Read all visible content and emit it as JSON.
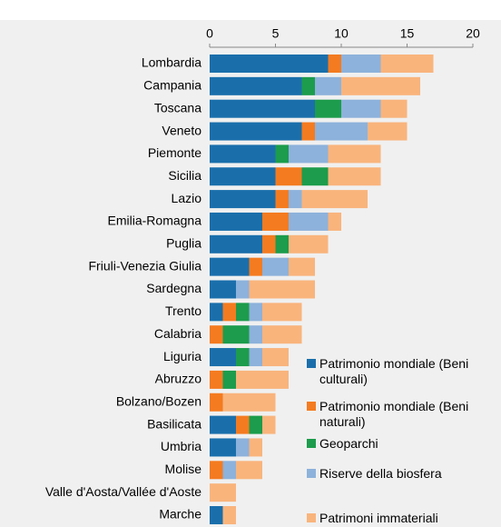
{
  "chart_data": {
    "type": "stacked-bar-horizontal",
    "categories": [
      "Lombardia",
      "Campania",
      "Toscana",
      "Veneto",
      "Piemonte",
      "Sicilia",
      "Lazio",
      "Emilia-Romagna",
      "Puglia",
      "Friuli-Venezia Giulia",
      "Sardegna",
      "Trento",
      "Calabria",
      "Liguria",
      "Abruzzo",
      "Bolzano/Bozen",
      "Basilicata",
      "Umbria",
      "Molise",
      "Valle d'Aosta/Vallée d'Aoste",
      "Marche"
    ],
    "series": [
      {
        "name": "Patrimonio mondiale (Beni culturali)",
        "color": "#1a6fab",
        "values": [
          9,
          7,
          8,
          7,
          5,
          5,
          5,
          4,
          4,
          3,
          2,
          1,
          0,
          2,
          0,
          0,
          2,
          2,
          0,
          0,
          1
        ]
      },
      {
        "name": "Patrimonio mondiale (Beni naturali)",
        "color": "#f47b20",
        "values": [
          1,
          0,
          0,
          1,
          0,
          2,
          1,
          2,
          1,
          1,
          0,
          1,
          1,
          0,
          1,
          1,
          1,
          0,
          1,
          0,
          0
        ]
      },
      {
        "name": "Geoparchi",
        "color": "#1c9c4c",
        "values": [
          0,
          1,
          2,
          0,
          1,
          2,
          0,
          0,
          1,
          0,
          0,
          1,
          2,
          1,
          1,
          0,
          1,
          0,
          0,
          0,
          0
        ]
      },
      {
        "name": "Riserve della biosfera",
        "color": "#8db2db",
        "values": [
          3,
          2,
          3,
          4,
          3,
          0,
          1,
          3,
          0,
          2,
          1,
          1,
          1,
          1,
          0,
          0,
          0,
          1,
          1,
          0,
          0
        ]
      },
      {
        "name": "Patrimoni immateriali",
        "color": "#f9b47c",
        "values": [
          4,
          6,
          2,
          3,
          4,
          4,
          5,
          1,
          3,
          2,
          5,
          3,
          3,
          2,
          4,
          4,
          1,
          1,
          2,
          2,
          1
        ]
      }
    ],
    "xlim": [
      0,
      20
    ],
    "xticks": [
      0,
      5,
      10,
      15,
      20
    ],
    "grid": false,
    "legend": "lower right"
  }
}
